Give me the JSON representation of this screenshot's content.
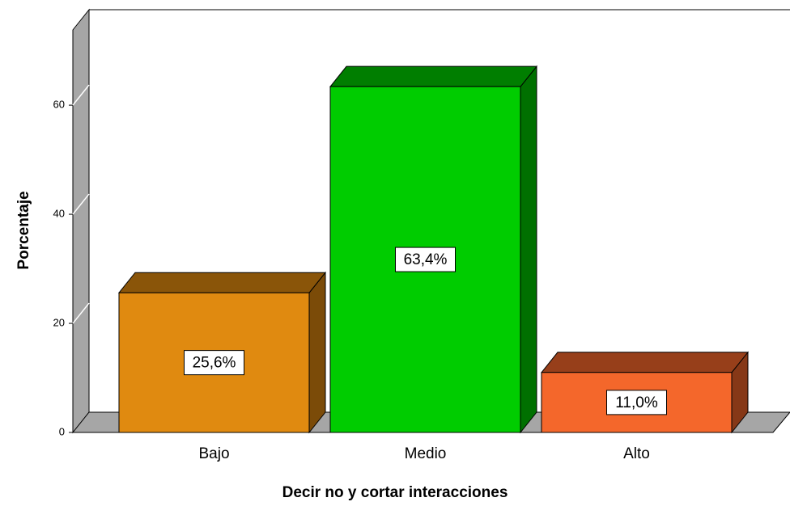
{
  "chart_data": {
    "type": "bar3d",
    "x_label": "Decir no y cortar interacciones",
    "y_label": "Porcentaje",
    "categories": [
      "Bajo",
      "Medio",
      "Alto"
    ],
    "values": [
      25.6,
      63.4,
      11.0
    ],
    "value_labels": [
      "25,6%",
      "63,4%",
      "11,0%"
    ],
    "colors": [
      "#e08a10",
      "#00cc00",
      "#f4672b"
    ],
    "ylim": [
      0,
      77.5
    ],
    "yticks": [
      0,
      20,
      40,
      60
    ],
    "grid": true
  }
}
